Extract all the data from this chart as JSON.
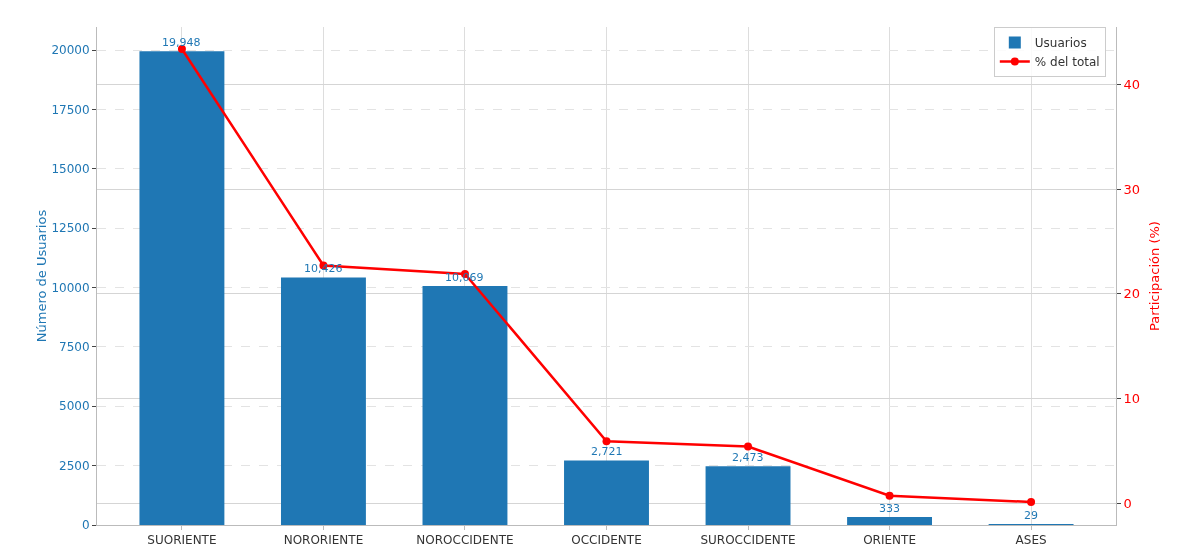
{
  "chart_data": {
    "type": "bar",
    "categories": [
      "SUORIENTE",
      "NORORIENTE",
      "NOROCCIDENTE",
      "OCCIDENTE",
      "SUROCCIDENTE",
      "ORIENTE",
      "ASES"
    ],
    "ylabel": "Número de Usuarios",
    "y2label": "Participación (%)",
    "ylim": [
      0,
      20970
    ],
    "yticks": [
      0,
      2500,
      5000,
      7500,
      10000,
      12500,
      15000,
      17500,
      20000
    ],
    "y2lim": [
      -2.1,
      45.5
    ],
    "y2ticks": [
      0,
      10,
      20,
      30,
      40
    ],
    "series": [
      {
        "name": "Usuarios",
        "color": "#1f77b4",
        "values": [
          19948,
          10426,
          10069,
          2721,
          2473,
          333,
          29
        ],
        "value_labels": [
          "19,948",
          "10,426",
          "10,069",
          "2,721",
          "2,473",
          "333",
          "29"
        ]
      },
      {
        "name": "% del total",
        "type": "line",
        "axis": "y2",
        "color": "#ff0000",
        "marker": "circle",
        "line_style": "solid",
        "values": [
          43.4,
          22.7,
          21.9,
          5.9,
          5.4,
          0.7,
          0.1
        ]
      }
    ],
    "grid": true,
    "legend": "top right"
  }
}
